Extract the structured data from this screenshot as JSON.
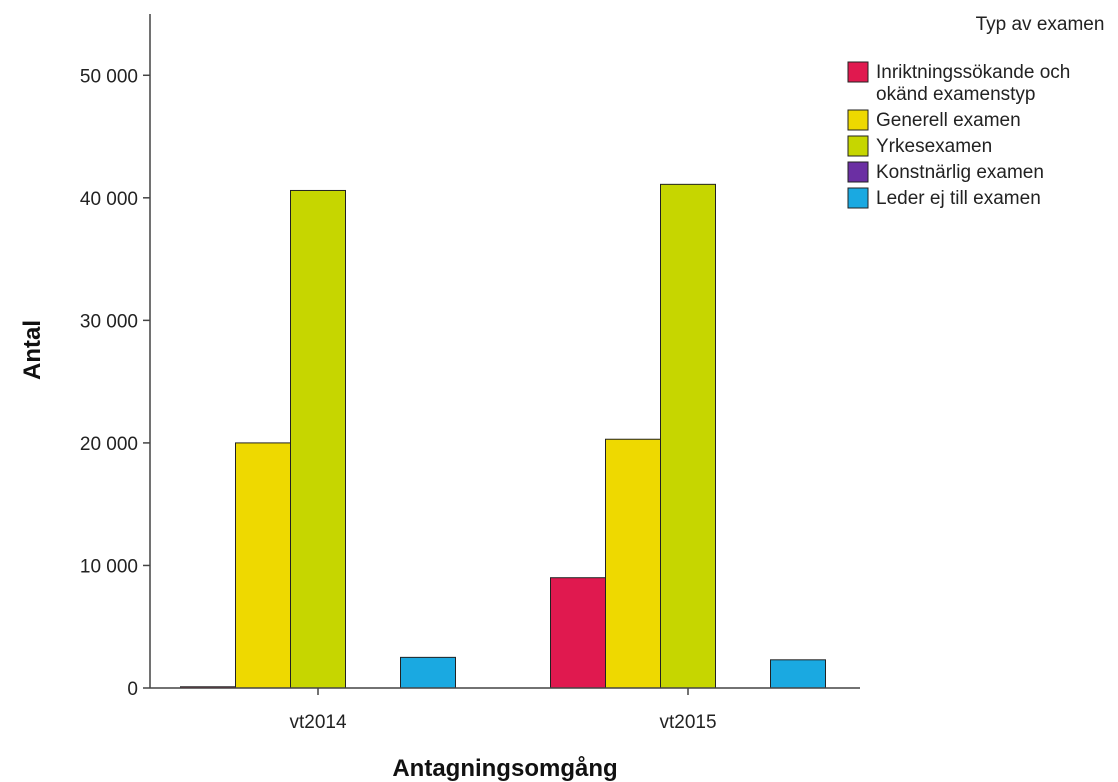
{
  "chart_data": {
    "type": "bar",
    "title": "",
    "xlabel": "Antagningsomgång",
    "ylabel": "Antal",
    "categories": [
      "vt2014",
      "vt2015"
    ],
    "ylim": [
      0,
      55000
    ],
    "yticks": [
      0,
      10000,
      20000,
      30000,
      40000,
      50000
    ],
    "ytick_labels": [
      "0",
      "10 000",
      "20 000",
      "30 000",
      "40 000",
      "50 000"
    ],
    "grid": false,
    "legend": {
      "title": "Typ av examen",
      "placement": "top-right"
    },
    "series": [
      {
        "name": "Inriktningssökande och okänd examenstyp",
        "name_lines": [
          "Inriktningssökande och",
          "okänd examenstyp"
        ],
        "color": "#e0194f",
        "values": [
          100,
          9000
        ]
      },
      {
        "name": "Generell examen",
        "name_lines": [
          "Generell examen"
        ],
        "color": "#eed900",
        "values": [
          20000,
          20300
        ]
      },
      {
        "name": "Yrkesexamen",
        "name_lines": [
          "Yrkesexamen"
        ],
        "color": "#c6d600",
        "values": [
          40600,
          41100
        ]
      },
      {
        "name": "Konstnärlig examen",
        "name_lines": [
          "Konstnärlig examen"
        ],
        "color": "#6b2fa3",
        "values": [
          0,
          0
        ]
      },
      {
        "name": "Leder ej till examen",
        "name_lines": [
          "Leder ej till examen"
        ],
        "color": "#1aa9e1",
        "values": [
          2500,
          2300
        ]
      }
    ]
  }
}
